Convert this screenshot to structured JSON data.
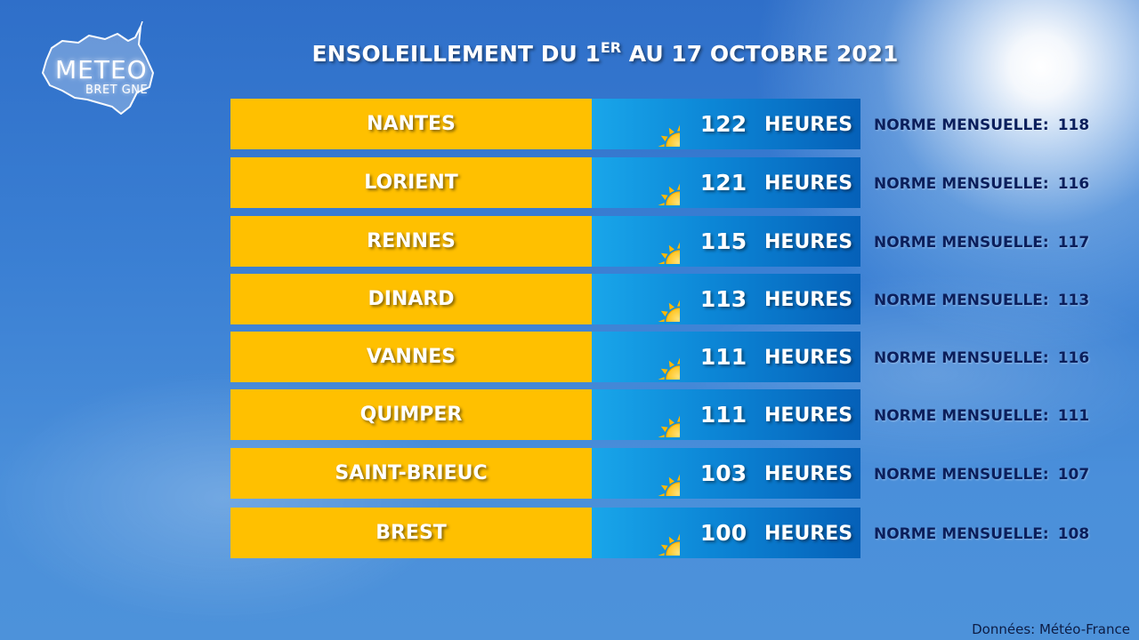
{
  "logo": {
    "title": "METEO",
    "subtitle": "BRET GNE"
  },
  "title": {
    "prefix": "ENSOLEILLEMENT DU 1",
    "sup": "ER",
    "suffix": " AU 17 OCTOBRE 2021"
  },
  "norm_label": "NORME MENSUELLE:",
  "unit": "HEURES",
  "colors": {
    "city_box": "#ffc000",
    "hours_box_start": "#19a6ea",
    "hours_box_end": "#0560b8",
    "norm_text": "#0b1f5c",
    "sun": "#ffb800"
  },
  "icons": {
    "sun": "sun-icon",
    "logo": "brittany-map-icon"
  },
  "rows": [
    {
      "city": "NANTES",
      "hours": "122",
      "norm": "118"
    },
    {
      "city": "LORIENT",
      "hours": "121",
      "norm": "116"
    },
    {
      "city": "RENNES",
      "hours": "115",
      "norm": "117"
    },
    {
      "city": "DINARD",
      "hours": "113",
      "norm": "113"
    },
    {
      "city": "VANNES",
      "hours": "111",
      "norm": "116"
    },
    {
      "city": "QUIMPER",
      "hours": "111",
      "norm": "111"
    },
    {
      "city": "SAINT-BRIEUC",
      "hours": "103",
      "norm": "107"
    },
    {
      "city": "BREST",
      "hours": "100",
      "norm": "108"
    }
  ],
  "source": "Données: Météo-France"
}
